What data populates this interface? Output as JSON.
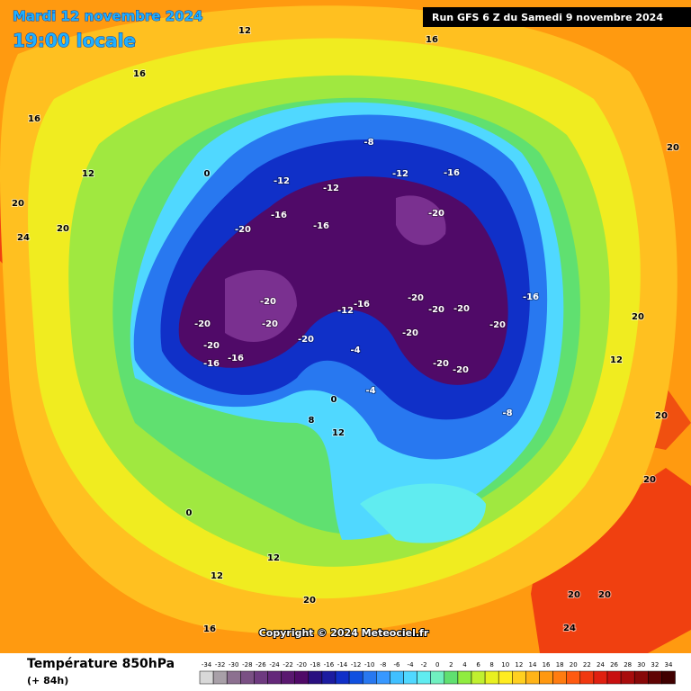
{
  "header": {
    "title": "Mardi 12 novembre 2024",
    "subtitle": "19:00 locale",
    "run": "Run GFS 6 Z du Samedi 9 novembre 2024"
  },
  "map": {
    "copyright": "Copyright © 2024 Meteociel.fr",
    "labels": [
      12,
      16,
      16,
      16,
      12,
      20,
      24,
      20,
      0,
      -12,
      -12,
      -12,
      -16,
      -20,
      -8,
      -16,
      -16,
      -20,
      -20,
      -20,
      -20,
      -20,
      -16,
      -16,
      -20,
      -16,
      -12,
      -20,
      -20,
      -20,
      -20,
      -20,
      -20,
      -20,
      -8,
      -16,
      -4,
      0,
      -4,
      12,
      8,
      0,
      12,
      12,
      20,
      16,
      20,
      20,
      24,
      20,
      20,
      20,
      20,
      12
    ]
  },
  "legend": {
    "title": "Température 850hPa",
    "lead": "(+ 84h)",
    "ticks": [
      -34,
      -32,
      -30,
      -28,
      -26,
      -24,
      -22,
      -20,
      -18,
      -16,
      -14,
      -12,
      -10,
      -8,
      -6,
      -4,
      -2,
      0,
      2,
      4,
      6,
      8,
      10,
      12,
      14,
      16,
      18,
      20,
      22,
      24,
      26,
      28,
      30,
      32,
      34
    ],
    "colors": [
      "#d8d8d8",
      "#a8a0a8",
      "#8c7090",
      "#7a5084",
      "#6e3a80",
      "#64287a",
      "#5a1870",
      "#500a68",
      "#2a1080",
      "#1c1ca0",
      "#1030c8",
      "#1050e0",
      "#2878f0",
      "#3898ff",
      "#40c0ff",
      "#50d8ff",
      "#60ecf0",
      "#70f0c0",
      "#60e070",
      "#90ec40",
      "#c0f030",
      "#e8f020",
      "#ffec20",
      "#ffd020",
      "#ffb418",
      "#ff9810",
      "#ff7c10",
      "#ff5a10",
      "#f03810",
      "#e02010",
      "#c81010",
      "#a80c0c",
      "#880808",
      "#600404",
      "#400000"
    ]
  }
}
